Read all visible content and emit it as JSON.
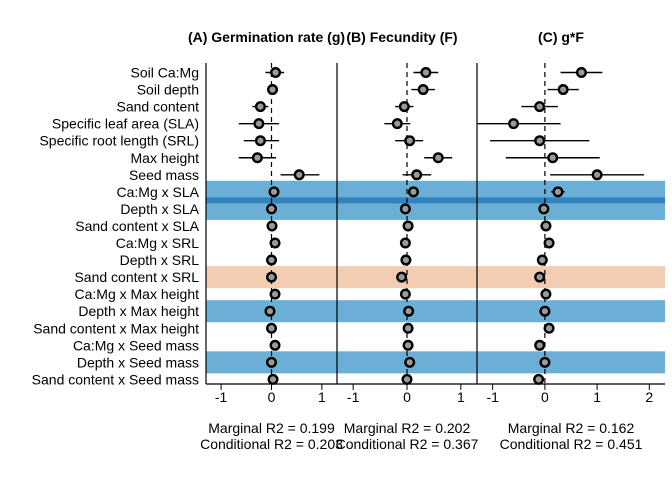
{
  "chart_data": {
    "type": "scatter",
    "colors": {
      "positive_band": "#6baed6",
      "strong_line": "#3182bd",
      "negative_band": "#f3cdb2",
      "point_fill": "#9a9a9a",
      "point_stroke": "#000000"
    },
    "rows": [
      "Soil Ca:Mg",
      "Soil depth",
      "Sand content",
      "Specific leaf area (SLA)",
      "Specific root length (SRL)",
      "Max height",
      "Seed mass",
      "Ca:Mg x SLA",
      "Depth x SLA",
      "Sand content x SLA",
      "Ca:Mg x SRL",
      "Depth x SRL",
      "Sand content x SRL",
      "Ca:Mg x Max height",
      "Depth x Max height",
      "Sand content x Max height",
      "Ca:Mg x Seed mass",
      "Depth x Seed mass",
      "Sand content x Seed mass"
    ],
    "row_bands": [
      {
        "row": 7,
        "effect": "positive"
      },
      {
        "row": 8,
        "effect": "positive"
      },
      {
        "row": 12,
        "effect": "negative"
      },
      {
        "row": 14,
        "effect": "positive"
      },
      {
        "row": 17,
        "effect": "positive"
      }
    ],
    "panels": [
      {
        "title": "(A) Germination rate (g)",
        "xlim": [
          -1.3,
          1.3
        ],
        "ticks": [
          -1,
          0,
          1
        ],
        "tick_labels": [
          "-1",
          "0",
          "1"
        ],
        "estimates": [
          0.08,
          0.02,
          -0.22,
          -0.25,
          -0.22,
          -0.28,
          0.55,
          0.05,
          0.0,
          0.01,
          0.07,
          0.0,
          0.0,
          0.07,
          -0.03,
          0.0,
          0.07,
          0.0,
          0.03
        ],
        "lower": [
          -0.12,
          -0.06,
          -0.38,
          -0.65,
          -0.55,
          -0.65,
          0.18,
          -0.05,
          -0.08,
          -0.07,
          -0.01,
          -0.08,
          -0.08,
          -0.01,
          -0.11,
          -0.08,
          -0.01,
          -0.08,
          -0.05
        ],
        "upper": [
          0.25,
          0.1,
          -0.06,
          0.15,
          0.15,
          0.09,
          0.95,
          0.15,
          0.08,
          0.09,
          0.15,
          0.08,
          0.08,
          0.15,
          0.05,
          0.08,
          0.15,
          0.08,
          0.11
        ],
        "marginal_r2": "Marginal R2 = 0.199",
        "conditional_r2": "Conditional R2 = 0.203"
      },
      {
        "title": "(B) Fecundity (F)",
        "xlim": [
          -1.3,
          1.3
        ],
        "ticks": [
          -1,
          0,
          1
        ],
        "tick_labels": [
          "-1",
          "0",
          "1"
        ],
        "estimates": [
          0.35,
          0.3,
          -0.05,
          -0.18,
          0.05,
          0.58,
          0.18,
          0.12,
          -0.03,
          0.02,
          -0.03,
          -0.02,
          -0.1,
          -0.03,
          0.03,
          0.02,
          0.02,
          0.05,
          0.0
        ],
        "lower": [
          0.12,
          0.08,
          -0.22,
          -0.42,
          -0.22,
          0.32,
          -0.08,
          0.03,
          -0.11,
          -0.06,
          -0.11,
          -0.1,
          -0.18,
          -0.11,
          -0.05,
          -0.06,
          -0.06,
          -0.03,
          -0.08
        ],
        "upper": [
          0.58,
          0.52,
          0.12,
          0.06,
          0.3,
          0.84,
          0.45,
          0.21,
          0.05,
          0.1,
          0.05,
          0.06,
          -0.02,
          0.05,
          0.11,
          0.1,
          0.1,
          0.13,
          0.08
        ],
        "marginal_r2": "Marginal R2 = 0.202",
        "conditional_r2": "Conditional R2 = 0.367"
      },
      {
        "title": "(C) g*F",
        "xlim": [
          -1.3,
          2.3
        ],
        "ticks": [
          -1,
          0,
          1,
          2
        ],
        "tick_labels": [
          "-1",
          "0",
          "1",
          "2"
        ],
        "estimates": [
          0.7,
          0.35,
          -0.1,
          -0.6,
          -0.1,
          0.15,
          1.0,
          0.25,
          -0.02,
          0.02,
          0.08,
          -0.05,
          -0.1,
          0.02,
          0.0,
          0.08,
          -0.1,
          0.0,
          -0.12
        ],
        "lower": [
          0.3,
          0.05,
          -0.45,
          -1.3,
          -1.05,
          -0.75,
          0.1,
          0.12,
          -0.12,
          -0.08,
          -0.02,
          -0.15,
          -0.2,
          -0.08,
          -0.1,
          -0.02,
          -0.2,
          -0.1,
          -0.22
        ],
        "upper": [
          1.1,
          0.65,
          0.25,
          0.3,
          0.85,
          1.05,
          1.9,
          0.38,
          0.08,
          0.12,
          0.18,
          0.05,
          0.0,
          0.12,
          0.1,
          0.18,
          0.0,
          0.1,
          -0.02
        ],
        "marginal_r2": "Marginal R2 = 0.162",
        "conditional_r2": "Conditional R2 = 0.451"
      }
    ]
  }
}
